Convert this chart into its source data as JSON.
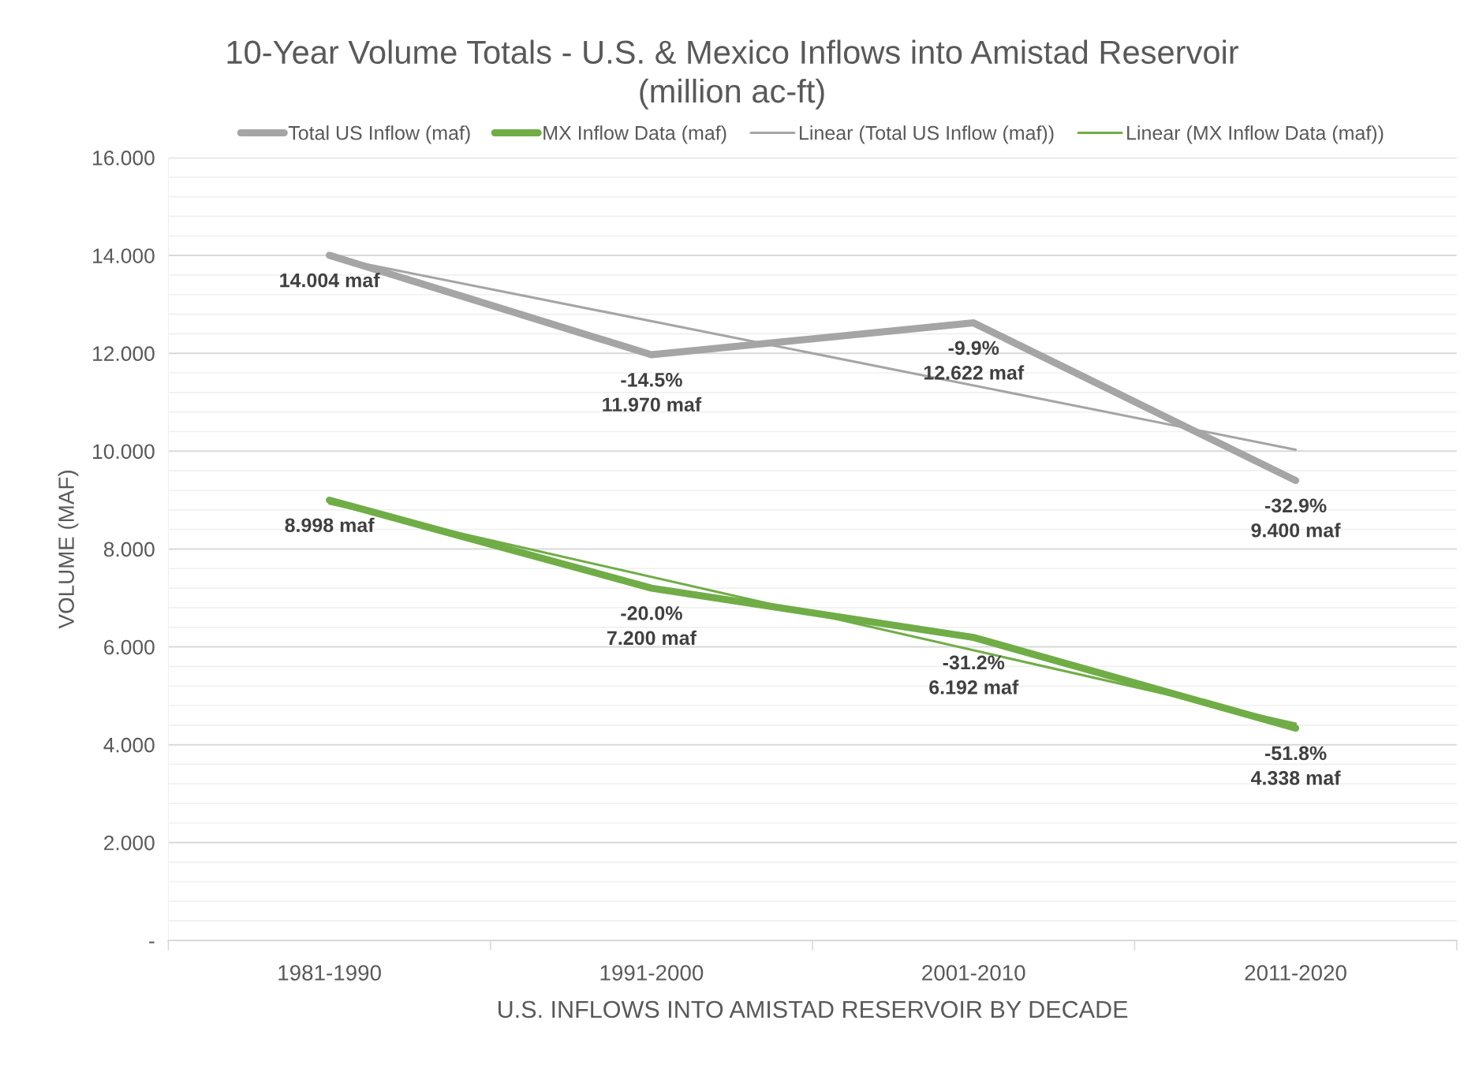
{
  "chart_data": {
    "type": "line",
    "title": "10-Year Volume Totals - U.S. & Mexico Inflows into Amistad Reservoir\n(million ac-ft)",
    "xlabel": "U.S. INFLOWS INTO AMISTAD RESERVOIR BY DECADE",
    "ylabel": "VOLUME (MAF)",
    "categories": [
      "1981-1990",
      "1991-2000",
      "2001-2010",
      "2011-2020"
    ],
    "series": [
      {
        "name": "Total US Inflow (maf)",
        "color": "#a5a5a5",
        "values": [
          14.004,
          11.97,
          12.622,
          9.4
        ],
        "value_labels": [
          "14.004 maf",
          "-14.5%\n11.970 maf",
          "-9.9%\n12.622 maf",
          "-32.9%\n9.400 maf"
        ]
      },
      {
        "name": "MX Inflow Data (maf)",
        "color": "#70ad47",
        "values": [
          8.998,
          7.2,
          6.192,
          4.338
        ],
        "value_labels": [
          "8.998 maf",
          "-20.0%\n7.200 maf",
          "-31.2%\n6.192 maf",
          "-51.8%\n4.338 maf"
        ]
      },
      {
        "name": "Linear (Total US Inflow (maf))",
        "type": "line",
        "color": "#a5a5a5",
        "x": [
          "1981-1990",
          "2011-2020"
        ],
        "values": [
          13.97,
          10.03
        ]
      },
      {
        "name": "Linear (MX Inflow Data (maf))",
        "type": "line",
        "color": "#70ad47",
        "x": [
          "1981-1990",
          "2011-2020"
        ],
        "values": [
          8.93,
          4.43
        ]
      }
    ],
    "ylim": [
      0,
      16
    ],
    "yticks": [
      {
        "value": 0,
        "label": "-"
      },
      {
        "value": 0.4,
        "label": null
      },
      {
        "value": 0.8,
        "label": null
      },
      {
        "value": 1.2,
        "label": null
      },
      {
        "value": 1.6,
        "label": null
      },
      {
        "value": 2,
        "label": "2.000"
      },
      {
        "value": 2.4,
        "label": null
      },
      {
        "value": 2.8,
        "label": null
      },
      {
        "value": 3.2,
        "label": null
      },
      {
        "value": 3.6,
        "label": null
      },
      {
        "value": 4,
        "label": "4.000"
      },
      {
        "value": 4.4,
        "label": null
      },
      {
        "value": 4.8,
        "label": null
      },
      {
        "value": 5.2,
        "label": null
      },
      {
        "value": 5.6,
        "label": null
      },
      {
        "value": 6,
        "label": "6.000"
      },
      {
        "value": 6.4,
        "label": null
      },
      {
        "value": 6.8,
        "label": null
      },
      {
        "value": 7.2,
        "label": null
      },
      {
        "value": 7.6,
        "label": null
      },
      {
        "value": 8,
        "label": "8.000"
      },
      {
        "value": 8.4,
        "label": null
      },
      {
        "value": 8.8,
        "label": null
      },
      {
        "value": 9.2,
        "label": null
      },
      {
        "value": 9.6,
        "label": null
      },
      {
        "value": 10,
        "label": "10.000"
      },
      {
        "value": 10.4,
        "label": null
      },
      {
        "value": 10.8,
        "label": null
      },
      {
        "value": 11.2,
        "label": null
      },
      {
        "value": 11.6,
        "label": null
      },
      {
        "value": 12,
        "label": "12.000"
      },
      {
        "value": 12.4,
        "label": null
      },
      {
        "value": 12.8,
        "label": null
      },
      {
        "value": 13.2,
        "label": null
      },
      {
        "value": 13.6,
        "label": null
      },
      {
        "value": 14,
        "label": "14.000"
      },
      {
        "value": 14.4,
        "label": null
      },
      {
        "value": 14.8,
        "label": null
      },
      {
        "value": 15.2,
        "label": null
      },
      {
        "value": 15.6,
        "label": null
      },
      {
        "value": 16,
        "label": "16.000"
      }
    ],
    "grid": "y",
    "legend": "top"
  }
}
